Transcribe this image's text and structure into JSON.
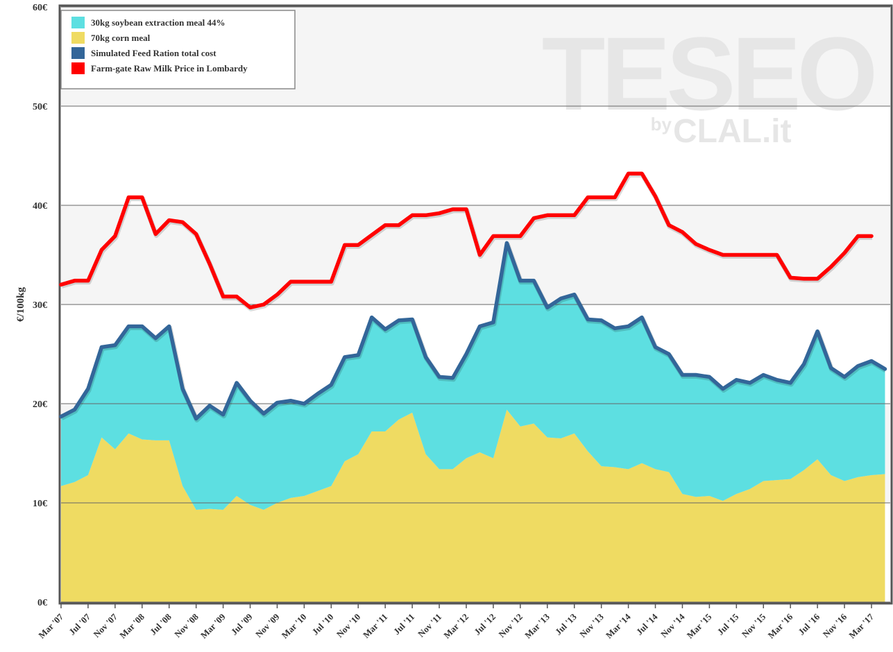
{
  "chart_data": {
    "type": "stacked-area-line",
    "y_label": "€/100kg",
    "watermark": {
      "title": "TESEO",
      "by": "by",
      "brand": "CLAL.it"
    },
    "categories": [
      "Mar '07",
      null,
      "Jul '07",
      null,
      "Nov '07",
      null,
      "Mar '08",
      null,
      "Jul '08",
      null,
      "Nov '08",
      null,
      "Mar '09",
      null,
      "Jul '09",
      null,
      "Nov '09",
      null,
      "Mar '10",
      null,
      "Jul '10",
      null,
      "Nov '10",
      null,
      "Mar '11",
      null,
      "Jul '11",
      null,
      "Nov '11",
      null,
      "Mar '12",
      null,
      "Jul '12",
      null,
      "Nov '12",
      null,
      "Mar '13",
      null,
      "Jul '13",
      null,
      "Nov '13",
      null,
      "Mar '14",
      null,
      "Jul '14",
      null,
      "Nov '14",
      null,
      "Mar '15",
      null,
      "Jul '15",
      null,
      "Nov '15",
      null,
      "Mar '16",
      null,
      "Jul '16",
      null,
      "Nov '16",
      null,
      "Mar '17",
      null
    ],
    "ylim": [
      0,
      60
    ],
    "yticks": [
      {
        "value": 0,
        "label": "0€"
      },
      {
        "value": 10,
        "label": "10€"
      },
      {
        "value": 20,
        "label": "20€"
      },
      {
        "value": 30,
        "label": "30€"
      },
      {
        "value": 40,
        "label": "40€"
      },
      {
        "value": 50,
        "label": "50€"
      },
      {
        "value": 60,
        "label": "60€"
      }
    ],
    "grid": true,
    "legend": "top-left",
    "series": [
      {
        "name": "30kg soybean extraction meal 44%",
        "type": "area",
        "color": "#5ddfe1",
        "values": [
          7.0,
          7.3,
          8.7,
          9.1,
          10.5,
          10.8,
          11.4,
          10.3,
          11.5,
          9.8,
          9.2,
          10.4,
          9.6,
          11.4,
          10.5,
          9.7,
          10.1,
          9.8,
          9.3,
          9.8,
          10.2,
          10.5,
          10.0,
          11.5,
          10.3,
          10.0,
          9.4,
          9.8,
          9.3,
          9.2,
          10.5,
          12.7,
          13.7,
          16.8,
          14.7,
          14.4,
          13.1,
          14.1,
          14.0,
          13.3,
          14.7,
          14.0,
          14.4,
          14.7,
          12.3,
          11.9,
          12.0,
          12.3,
          12.0,
          11.3,
          11.5,
          10.7,
          10.7,
          10.1,
          9.7,
          10.7,
          12.9,
          10.8,
          10.5,
          11.2,
          11.5,
          10.6
        ]
      },
      {
        "name": "70kg corn meal",
        "type": "area",
        "color": "#efdb62",
        "values": [
          11.7,
          12.1,
          12.8,
          16.6,
          15.4,
          17.0,
          16.4,
          16.3,
          16.3,
          11.7,
          9.3,
          9.4,
          9.3,
          10.7,
          9.8,
          9.3,
          10.0,
          10.5,
          10.7,
          11.2,
          11.7,
          14.2,
          14.9,
          17.2,
          17.2,
          18.4,
          19.1,
          14.9,
          13.4,
          13.4,
          14.5,
          15.1,
          14.5,
          19.4,
          17.7,
          18.0,
          16.6,
          16.5,
          17.0,
          15.2,
          13.7,
          13.6,
          13.4,
          14.0,
          13.4,
          13.1,
          10.9,
          10.6,
          10.7,
          10.2,
          10.9,
          11.4,
          12.2,
          12.3,
          12.4,
          13.3,
          14.4,
          12.8,
          12.2,
          12.6,
          12.8,
          12.9
        ]
      },
      {
        "name": "Simulated Feed Ration total cost",
        "type": "line",
        "color": "#336699",
        "values": [
          18.7,
          19.4,
          21.5,
          25.7,
          25.9,
          27.8,
          27.8,
          26.6,
          27.8,
          21.5,
          18.5,
          19.8,
          18.9,
          22.1,
          20.3,
          19.0,
          20.1,
          20.3,
          20.0,
          21.0,
          21.9,
          24.7,
          24.9,
          28.7,
          27.5,
          28.4,
          28.5,
          24.7,
          22.7,
          22.6,
          25.0,
          27.8,
          28.2,
          36.2,
          32.4,
          32.4,
          29.7,
          30.6,
          31.0,
          28.5,
          28.4,
          27.6,
          27.8,
          28.7,
          25.7,
          25.0,
          22.9,
          22.9,
          22.7,
          21.5,
          22.4,
          22.1,
          22.9,
          22.4,
          22.1,
          24.0,
          27.3,
          23.6,
          22.7,
          23.8,
          24.3,
          23.5
        ]
      },
      {
        "name": "Farm-gate Raw Milk Price in Lombardy",
        "type": "line",
        "color": "#ff0000",
        "values": [
          32.0,
          32.4,
          32.4,
          35.5,
          36.9,
          40.8,
          40.8,
          37.1,
          38.5,
          38.3,
          37.1,
          34.1,
          30.8,
          30.8,
          29.7,
          30.0,
          31.0,
          32.3,
          32.3,
          32.3,
          32.3,
          36.0,
          36.0,
          37.0,
          38.0,
          38.0,
          39.0,
          39.0,
          39.2,
          39.6,
          39.6,
          35.0,
          36.9,
          36.9,
          36.9,
          38.7,
          39.0,
          39.0,
          39.0,
          40.8,
          40.8,
          40.8,
          43.2,
          43.2,
          40.9,
          38.0,
          37.3,
          36.1,
          35.5,
          35.0,
          35.0,
          35.0,
          35.0,
          35.0,
          32.7,
          32.6,
          32.6,
          33.8,
          35.2,
          36.9,
          36.9,
          null
        ]
      }
    ]
  }
}
